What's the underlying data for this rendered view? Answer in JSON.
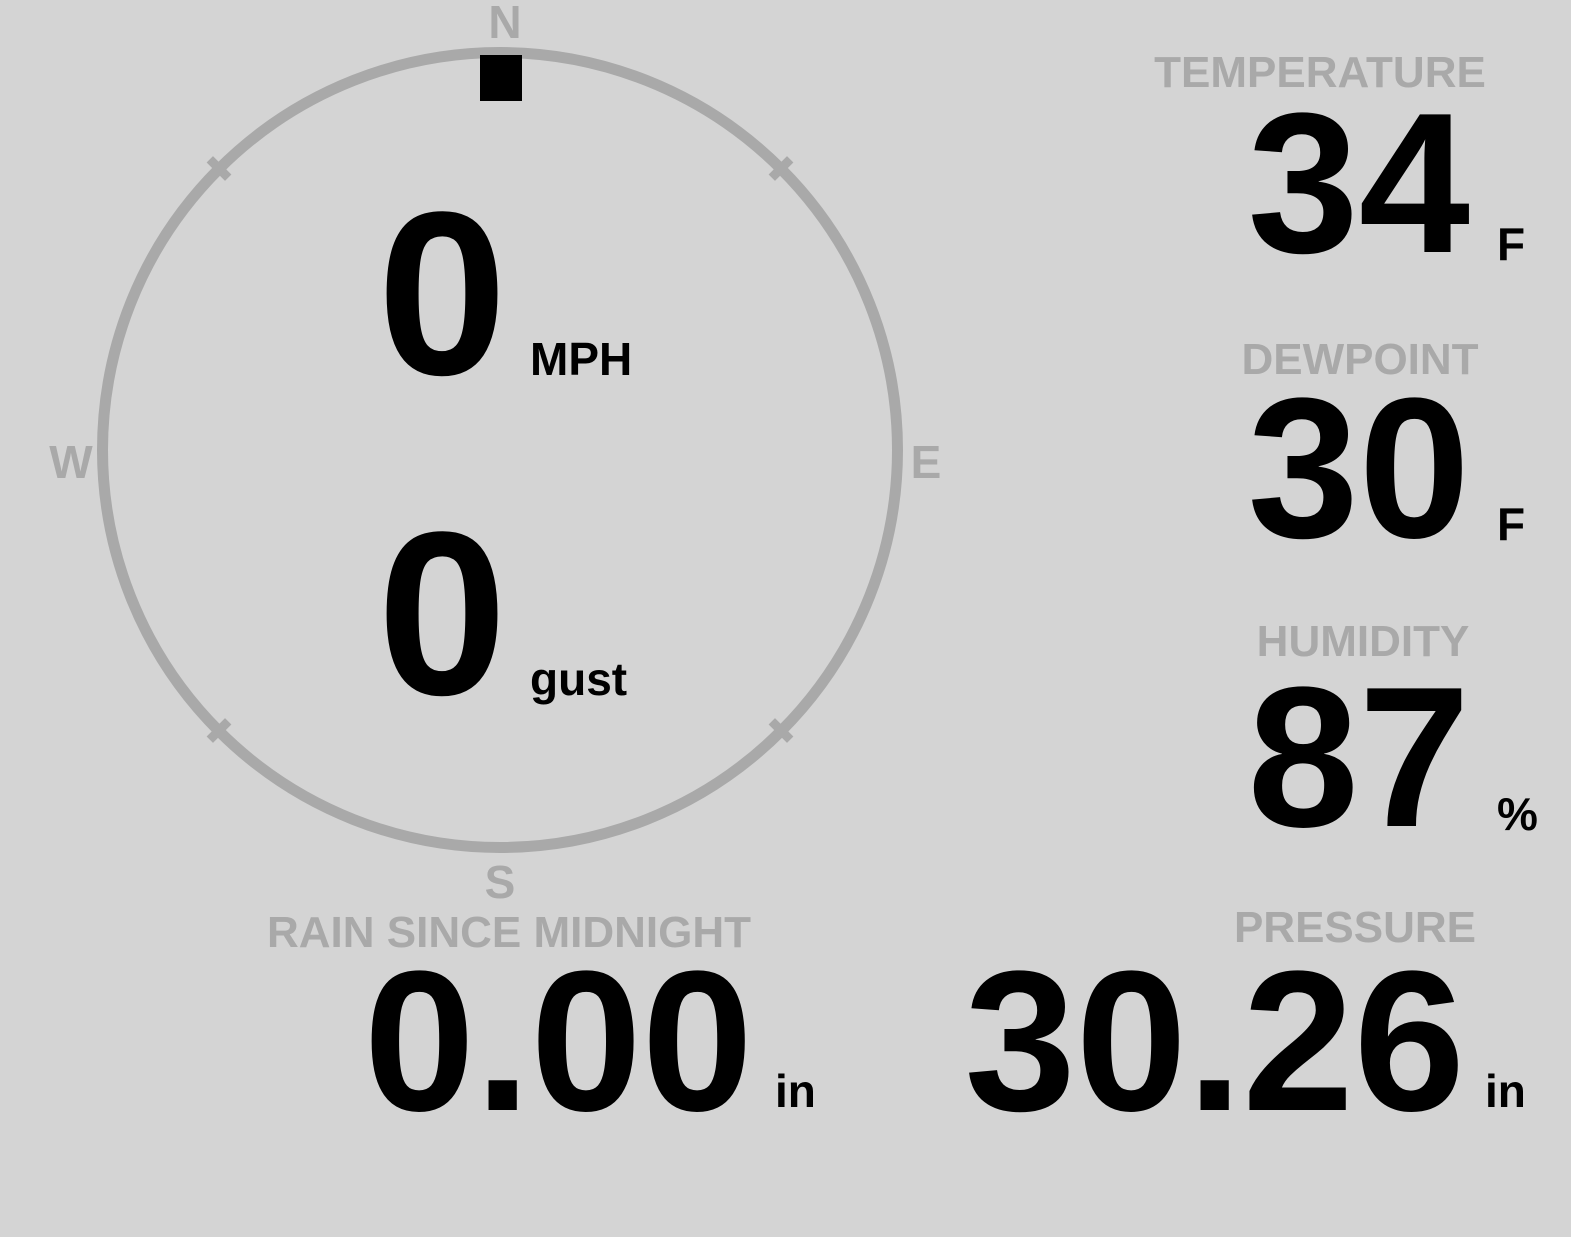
{
  "colors": {
    "background": "#d4d4d4",
    "muted": "#a9a9a9",
    "ink": "#000000"
  },
  "wind": {
    "speed": "0",
    "speed_unit": "MPH",
    "gust": "0",
    "gust_unit": "gust",
    "direction": "N",
    "compass": {
      "north": "N",
      "east": "E",
      "south": "S",
      "west": "W"
    }
  },
  "metrics": {
    "temperature": {
      "label": "TEMPERATURE",
      "value": "34",
      "unit": "F"
    },
    "dewpoint": {
      "label": "DEWPOINT",
      "value": "30",
      "unit": "F"
    },
    "humidity": {
      "label": "HUMIDITY",
      "value": "87",
      "unit": "%"
    },
    "rain": {
      "label": "RAIN SINCE MIDNIGHT",
      "value": "0.00",
      "unit": "in"
    },
    "pressure": {
      "label": "PRESSURE",
      "value": "30.26",
      "unit": "in"
    }
  }
}
